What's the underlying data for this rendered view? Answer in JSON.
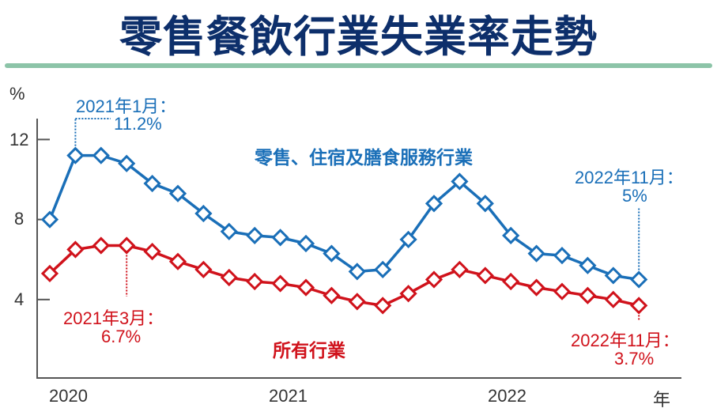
{
  "title": "零售餐飲行業失業率走勢",
  "colors": {
    "title": "#0d2f6b",
    "rule": "#8cc4a8",
    "retail": "#1a6fb8",
    "all": "#d0121b",
    "axis": "#555555"
  },
  "chart_data": {
    "type": "line",
    "title": "零售餐飲行業失業率走勢",
    "ylabel": "%",
    "xlabel": "年",
    "ylim": [
      0,
      13.5
    ],
    "yticks": [
      4,
      8,
      12
    ],
    "xtick_labels": [
      "2020",
      "2021",
      "2022"
    ],
    "grid": false,
    "marker": "diamond",
    "series": [
      {
        "name": "零售、住宿及膳食服務行業",
        "color": "#1a6fb8",
        "values": [
          8.0,
          11.2,
          11.2,
          10.8,
          9.8,
          9.3,
          8.3,
          7.4,
          7.2,
          7.1,
          6.8,
          6.3,
          5.4,
          5.5,
          7.0,
          8.8,
          9.9,
          8.8,
          7.2,
          6.3,
          6.2,
          5.7,
          5.2,
          5.0
        ]
      },
      {
        "name": "所有行業",
        "color": "#d0121b",
        "values": [
          5.3,
          6.5,
          6.7,
          6.7,
          6.4,
          5.9,
          5.5,
          5.1,
          4.9,
          4.8,
          4.6,
          4.2,
          3.9,
          3.7,
          4.3,
          5.0,
          5.5,
          5.2,
          4.9,
          4.6,
          4.4,
          4.2,
          4.0,
          3.7
        ]
      }
    ],
    "annotations": [
      {
        "series": 0,
        "index": 1,
        "line1": "2021年1月：",
        "line2": "11.2%"
      },
      {
        "series": 1,
        "index": 3,
        "line1": "2021年3月：",
        "line2": "6.7%"
      },
      {
        "series": 0,
        "index": 23,
        "line1": "2022年11月：",
        "line2": "5%"
      },
      {
        "series": 1,
        "index": 23,
        "line1": "2022年11月：",
        "line2": "3.7%"
      }
    ]
  }
}
